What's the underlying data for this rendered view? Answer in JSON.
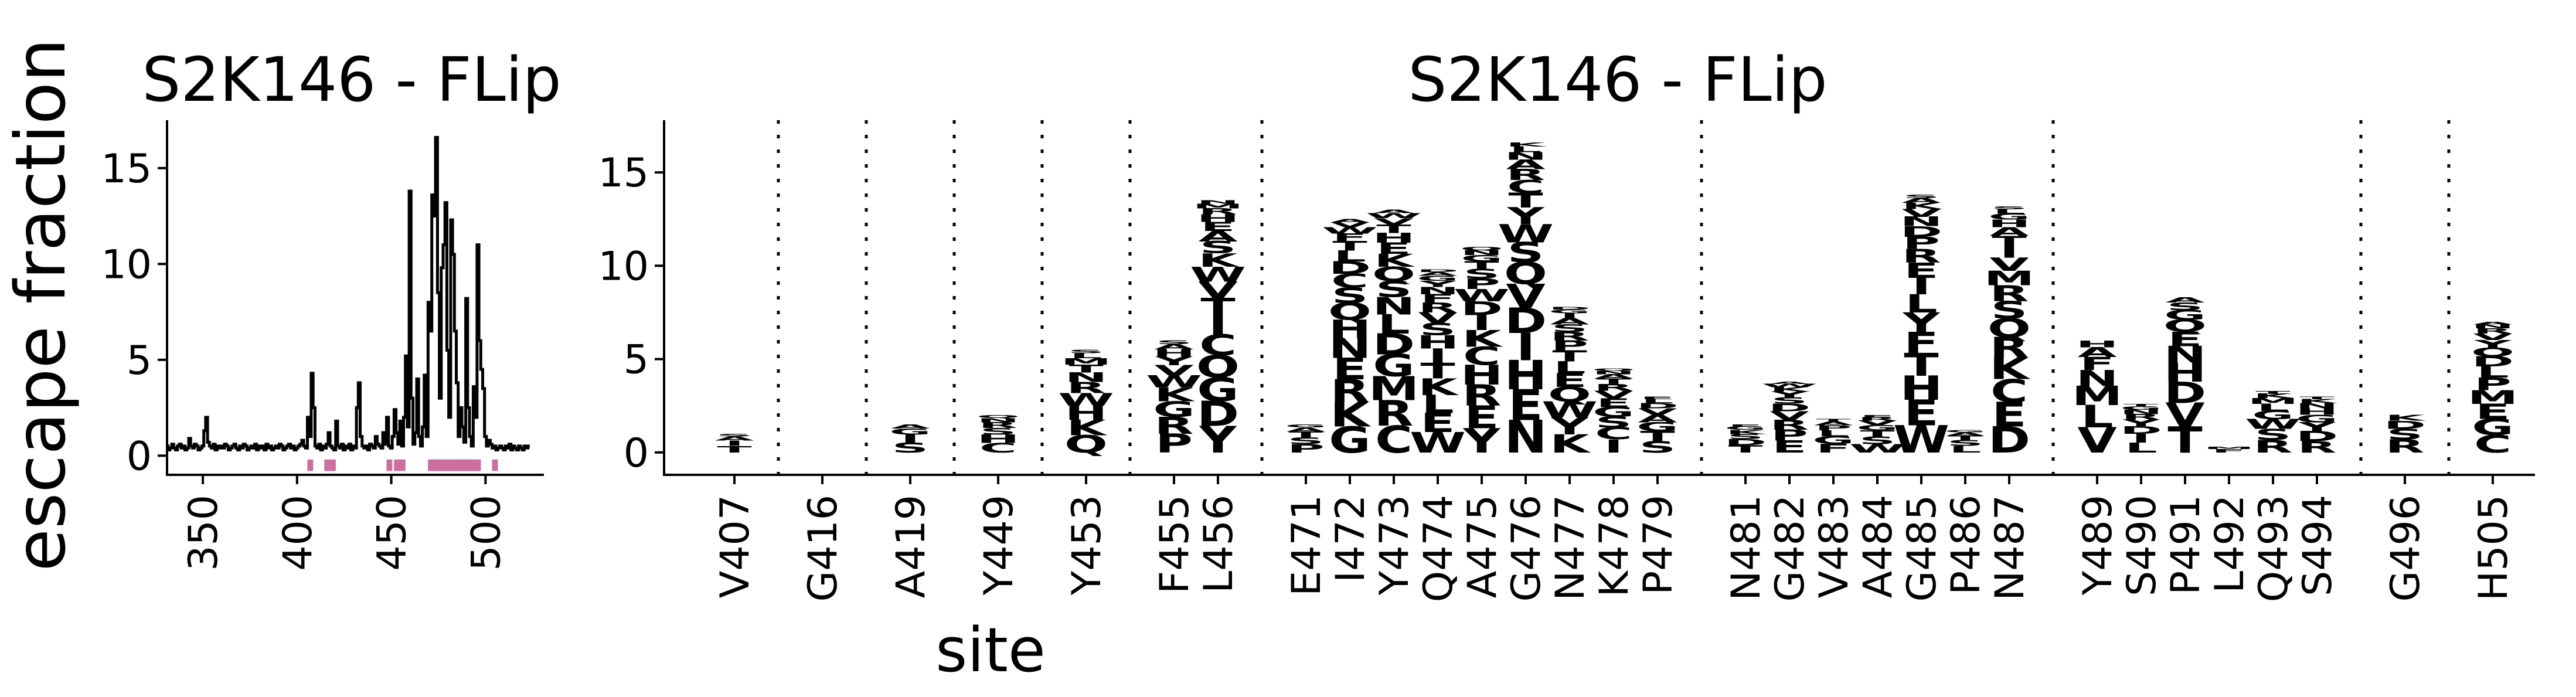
{
  "chart_data": [
    {
      "type": "line",
      "title": "S2K146 - FLip",
      "ylabel": "escape fraction",
      "xlabel": "",
      "xlim": [
        331,
        531
      ],
      "ylim": [
        -1,
        17.5
      ],
      "xticks": [
        350,
        400,
        450,
        500
      ],
      "yticks": [
        0,
        5,
        10,
        15
      ],
      "line_color": "#000000",
      "highlight_color": "#cc6f9e",
      "x_start": 331,
      "values": [
        0.5,
        0.3,
        0.4,
        0.6,
        0.4,
        0.3,
        0.5,
        0.6,
        0.4,
        0.5,
        0.3,
        0.4,
        0.9,
        0.5,
        0.4,
        0.6,
        0.5,
        0.3,
        0.4,
        0.5,
        1.3,
        2.0,
        0.7,
        0.5,
        0.4,
        0.6,
        0.3,
        0.5,
        0.4,
        0.5,
        0.4,
        0.6,
        0.5,
        0.3,
        0.4,
        0.5,
        0.6,
        0.4,
        0.3,
        0.5,
        0.4,
        0.6,
        0.5,
        0.3,
        0.4,
        0.5,
        0.4,
        0.6,
        0.3,
        0.5,
        0.4,
        0.5,
        0.3,
        0.6,
        0.4,
        0.5,
        0.3,
        0.4,
        0.5,
        0.4,
        0.6,
        0.5,
        0.3,
        0.4,
        0.5,
        0.6,
        0.4,
        0.5,
        0.3,
        0.4,
        0.5,
        0.6,
        0.8,
        0.5,
        0.4,
        2.0,
        1.0,
        4.3,
        2.5,
        0.5,
        0.4,
        0.6,
        0.3,
        0.5,
        0.4,
        0.6,
        1.2,
        0.5,
        0.4,
        0.3,
        1.8,
        0.5,
        0.4,
        0.6,
        0.3,
        0.5,
        0.4,
        0.6,
        0.3,
        0.5,
        0.4,
        2.5,
        3.8,
        1.0,
        0.5,
        0.4,
        0.5,
        0.3,
        0.6,
        0.5,
        0.4,
        1.0,
        0.6,
        0.5,
        0.4,
        1.2,
        0.6,
        2.0,
        0.5,
        0.4,
        1.0,
        2.4,
        1.2,
        0.6,
        1.8,
        0.5,
        2.0,
        5.2,
        1.5,
        13.8,
        3.0,
        0.6,
        1.2,
        4.0,
        1.0,
        0.5,
        1.5,
        4.2,
        1.0,
        8.0,
        6.5,
        13.6,
        12.5,
        16.6,
        8.5,
        3.0,
        9.8,
        11.0,
        13.2,
        5.5,
        2.0,
        12.3,
        10.5,
        6.5,
        3.8,
        1.0,
        2.5,
        1.5,
        0.7,
        8.2,
        2.5,
        1.0,
        0.5,
        3.6,
        2.0,
        11.0,
        6.0,
        4.5,
        3.5,
        1.0,
        0.5,
        0.8,
        0.6,
        0.4,
        0.5,
        0.3,
        0.4,
        0.5,
        0.4,
        0.3,
        0.5,
        0.4,
        0.6,
        0.3,
        0.5,
        0.4,
        0.3,
        0.5,
        0.4,
        0.3,
        0.5,
        0.4,
        0.5
      ],
      "highlighted_sites": [
        407,
        416,
        419,
        449,
        453,
        455,
        456,
        471,
        472,
        473,
        474,
        475,
        476,
        477,
        478,
        479,
        481,
        482,
        483,
        484,
        485,
        486,
        487,
        489,
        490,
        491,
        492,
        493,
        494,
        496,
        505
      ]
    },
    {
      "type": "logo",
      "title": "S2K146 - FLip",
      "xlabel": "site",
      "ylim": [
        -1.2,
        17.8
      ],
      "yticks": [
        0,
        5,
        10,
        15
      ],
      "groups_after": [
        0,
        1,
        2,
        3,
        4,
        6,
        15,
        22,
        28,
        29
      ],
      "sites": [
        {
          "label": "V407",
          "color": "#7a7a7a",
          "letters": "TIAS",
          "total": 1.0
        },
        {
          "label": "G416",
          "color": "#7a7a7a",
          "letters": "",
          "total": 0.0
        },
        {
          "label": "A419",
          "color": "#7a7a7a",
          "letters": "SIGA",
          "total": 1.5
        },
        {
          "label": "Y449",
          "color": "#3db5dc",
          "letters": "CHSRNQ",
          "total": 2.0
        },
        {
          "label": "Y453",
          "color": "#e5198f",
          "letters": "QKHWRNTMLS",
          "total": 5.5
        },
        {
          "label": "F455",
          "color": "#e5198f",
          "letters": "PRGKWVYHAS",
          "total": 6.0
        },
        {
          "label": "L456",
          "color": "#e5198f",
          "letters": "YDGQCITVWKSAEHRMN",
          "total": 13.5
        },
        {
          "label": "E471",
          "color": "#7a7a7a",
          "letters": "PSTAG",
          "total": 1.5
        },
        {
          "label": "I472",
          "color": "#5e12a6",
          "letters": "GKRENHQSCDLTFWVA",
          "total": 12.5
        },
        {
          "label": "Y473",
          "color": "#e5198f",
          "letters": "CRMGDLNSQKEHTVWA",
          "total": 13.0
        },
        {
          "label": "Q474",
          "color": "#e5198f",
          "letters": "WELKTIHSVRFNYGAD",
          "total": 9.8
        },
        {
          "label": "A475",
          "color": "#e5198f",
          "letters": "YERHCKIDWPSTGNQ",
          "total": 11.0
        },
        {
          "label": "G476",
          "color": "#e5198f",
          "letters": "NEHIDVQSWYTCRANLK",
          "total": 16.6
        },
        {
          "label": "N477",
          "color": "#7a7a7a",
          "letters": "KYWQELTPRSAIGD",
          "total": 7.8
        },
        {
          "label": "K478",
          "color": "#7a7a7a",
          "letters": "ICSGEVRTANQ",
          "total": 4.5
        },
        {
          "label": "P479",
          "color": "#7a7a7a",
          "letters": "STGAVDLE",
          "total": 3.0
        },
        {
          "label": "N481",
          "color": "#7a7a7a",
          "letters": "TDSKGE",
          "total": 1.5
        },
        {
          "label": "G482",
          "color": "#7a7a7a",
          "letters": "EPRVDSYKWA",
          "total": 3.8
        },
        {
          "label": "V483",
          "color": "#5e12a6",
          "letters": "FGLPAT",
          "total": 1.8
        },
        {
          "label": "A484",
          "color": "#5e12a6",
          "letters": "WSTGVRE",
          "total": 2.0
        },
        {
          "label": "G485",
          "color": "#5e12a6",
          "letters": "WEHTFYLIERPDNVKAS",
          "total": 13.8
        },
        {
          "label": "P486",
          "color": "#e5198f",
          "letters": "LSTAG",
          "total": 1.2
        },
        {
          "label": "N487",
          "color": "#e5198f",
          "letters": "DECKRQSRMVITAHGLS",
          "total": 13.2
        },
        {
          "label": "Y489",
          "color": "#e5198f",
          "letters": "VLMNFAH",
          "total": 6.0
        },
        {
          "label": "S490",
          "color": "#5e12a6",
          "letters": "LIDYRNGT",
          "total": 2.6
        },
        {
          "label": "P491",
          "color": "#5e12a6",
          "letters": "TVDHNEQGSA",
          "total": 8.3
        },
        {
          "label": "L492",
          "color": "#5e12a6",
          "letters": "FM",
          "total": 0.3
        },
        {
          "label": "Q493",
          "color": "#5e12a6",
          "letters": "RSWGLMKT",
          "total": 3.3
        },
        {
          "label": "S494",
          "color": "#5e12a6",
          "letters": "RDYGHNKT",
          "total": 3.0
        },
        {
          "label": "G496",
          "color": "#3db5dc",
          "letters": "RSDK",
          "total": 2.0
        },
        {
          "label": "H505",
          "color": "#7a7a7a",
          "letters": "CGEMPLDQYVRNA",
          "total": 7.0
        }
      ]
    }
  ]
}
